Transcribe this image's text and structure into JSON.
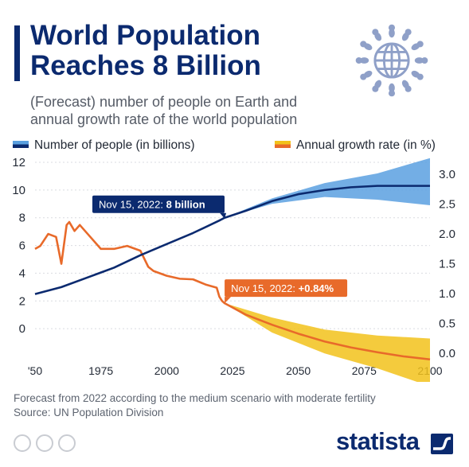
{
  "header": {
    "title_line1": "World Population",
    "title_line2": "Reaches 8 Billion",
    "subtitle_line1": "(Forecast) number of people on Earth and",
    "subtitle_line2": "annual growth rate of the world population"
  },
  "legend": {
    "people": "Number of people (in billions)",
    "growth": "Annual growth rate (in %)"
  },
  "footer": {
    "note": "Forecast from 2022 according to the medium scenario with moderate fertility",
    "source": "Source: UN Population Division",
    "brand": "statista"
  },
  "colors": {
    "navy": "#0b2a6f",
    "band_blue": "#5aa0e0",
    "orange": "#e86a2a",
    "band_yellow": "#f2c21b"
  },
  "chart_data": {
    "type": "line",
    "x_ticks": [
      "'50",
      "1975",
      "2000",
      "2025",
      "2050",
      "2075",
      "2100"
    ],
    "x_tick_values": [
      1950,
      1975,
      2000,
      2025,
      2050,
      2075,
      2100
    ],
    "xlim": [
      1950,
      2100
    ],
    "left_axis": {
      "ylim": [
        -2,
        12
      ],
      "ticks": [
        "0",
        "2",
        "4",
        "6",
        "8",
        "10",
        "12"
      ],
      "tick_values": [
        0,
        2,
        4,
        6,
        8,
        10,
        12
      ]
    },
    "right_axis": {
      "ylim": [
        -0.25,
        3.0
      ],
      "ticks": [
        "0.0",
        "0.5",
        "1.0",
        "1.5",
        "2.0",
        "2.5",
        "3.0"
      ],
      "tick_values": [
        0,
        0.5,
        1.0,
        1.5,
        2.0,
        2.5,
        3.0
      ]
    },
    "grid": "horizontal",
    "series": [
      {
        "name": "Number of people (in billions)",
        "axis": "left",
        "x": [
          1950,
          1960,
          1970,
          1980,
          1990,
          2000,
          2010,
          2020,
          2022,
          2030,
          2040,
          2050,
          2060,
          2070,
          2080,
          2090,
          2100
        ],
        "values": [
          2.5,
          3.0,
          3.7,
          4.4,
          5.3,
          6.1,
          6.9,
          7.8,
          8.0,
          8.5,
          9.2,
          9.7,
          10.0,
          10.2,
          10.3,
          10.3,
          10.3
        ]
      },
      {
        "name": "Annual growth rate (in %)",
        "axis": "right",
        "x": [
          1950,
          1952,
          1955,
          1958,
          1960,
          1962,
          1963,
          1965,
          1967,
          1970,
          1975,
          1980,
          1985,
          1990,
          1993,
          1995,
          2000,
          2005,
          2010,
          2015,
          2019,
          2020,
          2021,
          2022,
          2030,
          2040,
          2050,
          2060,
          2070,
          2080,
          2090,
          2100
        ],
        "values": [
          1.75,
          1.8,
          2.0,
          1.95,
          1.5,
          2.15,
          2.2,
          2.05,
          2.15,
          2.0,
          1.75,
          1.75,
          1.8,
          1.72,
          1.45,
          1.38,
          1.3,
          1.25,
          1.24,
          1.15,
          1.1,
          0.95,
          0.88,
          0.84,
          0.65,
          0.48,
          0.33,
          0.2,
          0.1,
          0.02,
          -0.05,
          -0.1
        ]
      }
    ],
    "forecast_bands": [
      {
        "for": "Number of people (in billions)",
        "x": [
          2022,
          2040,
          2060,
          2080,
          2100
        ],
        "low": [
          8.0,
          9.0,
          9.5,
          9.3,
          8.9
        ],
        "high": [
          8.0,
          9.4,
          10.5,
          11.2,
          12.3
        ]
      },
      {
        "for": "Annual growth rate (in %)",
        "x": [
          2022,
          2040,
          2060,
          2080,
          2100
        ],
        "low": [
          0.84,
          0.35,
          0.0,
          -0.25,
          -0.55
        ],
        "high": [
          0.84,
          0.6,
          0.4,
          0.3,
          0.25
        ]
      }
    ],
    "annotations": [
      {
        "label": "Nov 15, 2022:",
        "value": "8 billion"
      },
      {
        "label": "Nov 15, 2022:",
        "value": "+0.84%"
      }
    ]
  }
}
